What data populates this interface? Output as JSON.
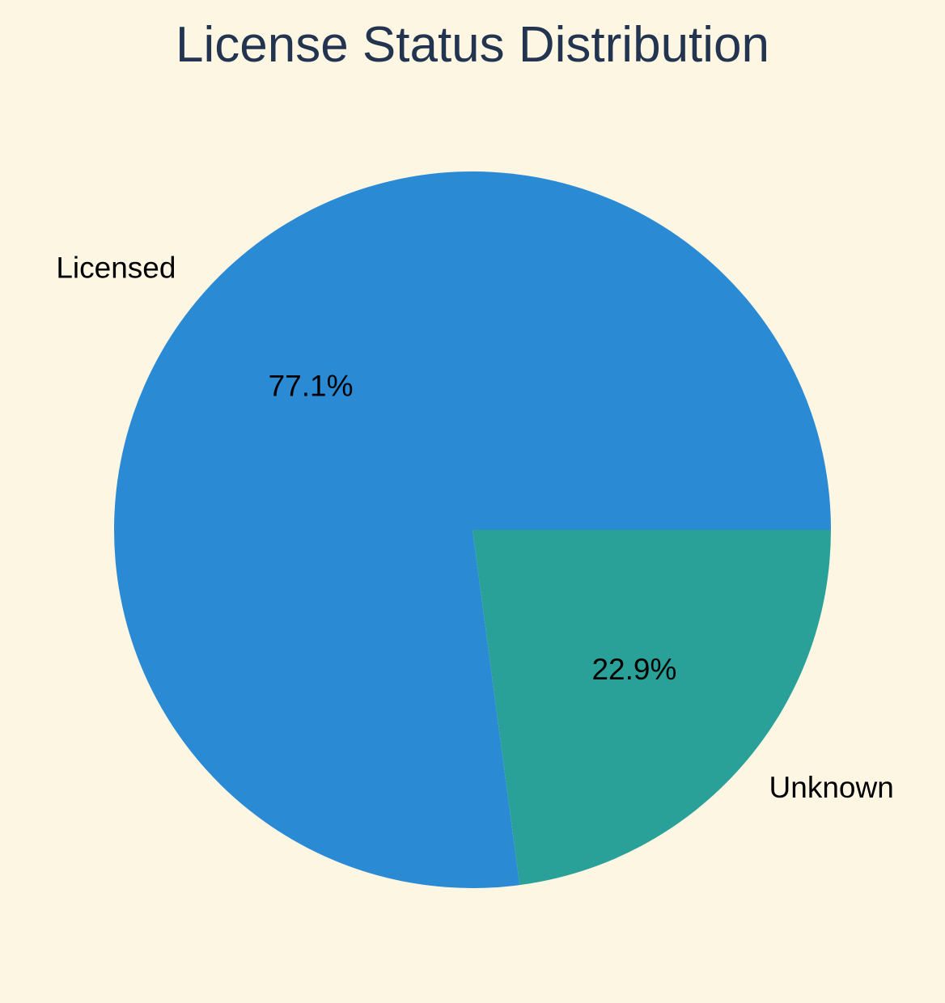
{
  "chart_data": {
    "type": "pie",
    "title": "License Status Distribution",
    "slices": [
      {
        "label": "Licensed",
        "value": 77.1,
        "pct_label": "77.1%",
        "color": "#2a8ad4"
      },
      {
        "label": "Unknown",
        "value": 22.9,
        "pct_label": "22.9%",
        "color": "#2aa198"
      }
    ],
    "start_angle_deg": 0,
    "direction": "counterclockwise",
    "background": "#fdf6e3"
  }
}
